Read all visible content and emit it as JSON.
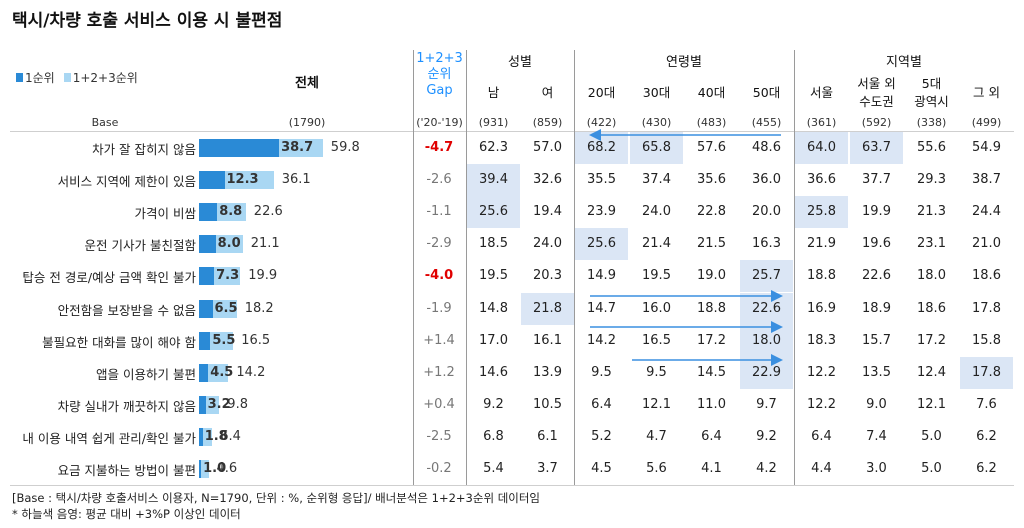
{
  "title": "택시/차량 호출 서비스 이용 시 불편점",
  "legend": {
    "rank1": "1순위",
    "rank123": "1+2+3순위"
  },
  "headers": {
    "total": "전체",
    "gap_line1": "1+2+3",
    "gap_line2": "순위",
    "gap_line3": "Gap",
    "group_gender": "성별",
    "group_age": "연령별",
    "group_region": "지역별",
    "columns": [
      "남",
      "여",
      "20대",
      "30대",
      "40대",
      "50대",
      "서울",
      "서울 외",
      "5대",
      "그 외"
    ],
    "region_sub": [
      "수도권",
      "광역시"
    ]
  },
  "base": {
    "label": "Base",
    "total": "(1790)",
    "gap": "('20-'19)",
    "columns": [
      "(931)",
      "(859)",
      "(422)",
      "(430)",
      "(483)",
      "(455)",
      "(361)",
      "(592)",
      "(338)",
      "(499)"
    ]
  },
  "colors": {
    "rank1": "#2a8ad6",
    "rank123": "#a9d7f3",
    "highlight": "#dbe6f5",
    "negative_gap": "#e00000",
    "arrow": "#3a8fe0"
  },
  "chart_data": {
    "type": "bar",
    "orientation": "horizontal",
    "categories": [
      "차가 잘 잡히지 않음",
      "서비스 지역에 제한이 있음",
      "가격이 비쌈",
      "운전 기사가 불친절함",
      "탑승 전 경로/예상 금액 확인 불가",
      "안전함을 보장받을 수 없음",
      "불필요한 대화를 많이 해야 함",
      "앱을 이용하기 불편",
      "차량 실내가 깨끗하지 않음",
      "내 이용 내역 쉽게 관리/확인 불가",
      "요금 지불하는 방법이 불편"
    ],
    "series": [
      {
        "name": "1순위",
        "values": [
          "38.7",
          "12.3",
          "8.8",
          "8.0",
          "7.3",
          "6.5",
          "5.5",
          "4.5",
          "3.2",
          "1.8",
          "1.0"
        ]
      },
      {
        "name": "1+2+3순위",
        "values": [
          "59.8",
          "36.1",
          "22.6",
          "21.1",
          "19.9",
          "18.2",
          "16.5",
          "14.2",
          "9.8",
          "6.4",
          "4.6"
        ]
      }
    ],
    "gap": [
      "-4.7",
      "-2.6",
      "-1.1",
      "-2.9",
      "-4.0",
      "-1.9",
      "+1.4",
      "+1.2",
      "+0.4",
      "-2.5",
      "-0.2"
    ],
    "table": [
      [
        "62.3",
        "57.0",
        "68.2",
        "65.8",
        "57.6",
        "48.6",
        "64.0",
        "63.7",
        "55.6",
        "54.9"
      ],
      [
        "39.4",
        "32.6",
        "35.5",
        "37.4",
        "35.6",
        "36.0",
        "36.6",
        "37.7",
        "29.3",
        "38.7"
      ],
      [
        "25.6",
        "19.4",
        "23.9",
        "24.0",
        "22.8",
        "20.0",
        "25.8",
        "19.9",
        "21.3",
        "24.4"
      ],
      [
        "18.5",
        "24.0",
        "25.6",
        "21.4",
        "21.5",
        "16.3",
        "21.9",
        "19.6",
        "23.1",
        "21.0"
      ],
      [
        "19.5",
        "20.3",
        "14.9",
        "19.5",
        "19.0",
        "25.7",
        "18.8",
        "22.6",
        "18.0",
        "18.6"
      ],
      [
        "14.8",
        "21.8",
        "14.7",
        "16.0",
        "18.8",
        "22.6",
        "16.9",
        "18.9",
        "18.6",
        "17.8"
      ],
      [
        "17.0",
        "16.1",
        "14.2",
        "16.5",
        "17.2",
        "18.0",
        "18.3",
        "15.7",
        "17.2",
        "15.8"
      ],
      [
        "14.6",
        "13.9",
        "9.5",
        "9.5",
        "14.5",
        "22.9",
        "12.2",
        "13.5",
        "12.4",
        "17.8"
      ],
      [
        "9.2",
        "10.5",
        "6.4",
        "12.1",
        "11.0",
        "9.7",
        "12.2",
        "9.0",
        "12.1",
        "7.6"
      ],
      [
        "6.8",
        "6.1",
        "5.2",
        "4.7",
        "6.4",
        "9.2",
        "6.4",
        "7.4",
        "5.0",
        "6.2"
      ],
      [
        "5.4",
        "3.7",
        "4.5",
        "5.6",
        "4.1",
        "4.2",
        "4.4",
        "3.0",
        "5.0",
        "6.2"
      ]
    ],
    "highlighted": [
      [
        0,
        2
      ],
      [
        0,
        3
      ],
      [
        0,
        6
      ],
      [
        0,
        7
      ],
      [
        1,
        0
      ],
      [
        2,
        0
      ],
      [
        2,
        6
      ],
      [
        3,
        2
      ],
      [
        4,
        5
      ],
      [
        5,
        1
      ],
      [
        5,
        5
      ],
      [
        6,
        5
      ],
      [
        7,
        5
      ],
      [
        7,
        9
      ]
    ],
    "xlim": [
      0,
      100
    ]
  },
  "footnotes": [
    "[Base :  택시/차량 호출서비스 이용자, N=1790, 단위 : %, 순위형 응답]/ 배너분석은 1+2+3순위 데이터임",
    "* 하늘색 음영: 평균 대비 +3%P 이상인 데이터"
  ]
}
